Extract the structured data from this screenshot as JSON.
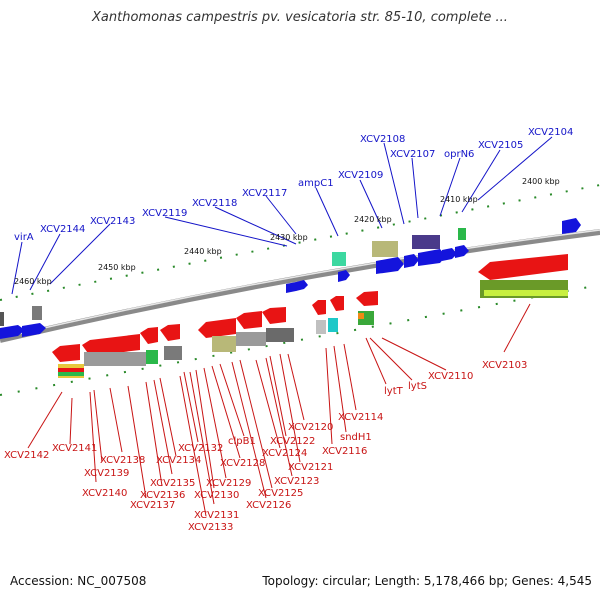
{
  "title": "Xanthomonas campestris pv. vesicatoria str. 85-10, complete ...",
  "accession": "Accession: NC_007508",
  "summary": "Topology: circular; Length: 5,178,466 bp; Genes: 4,545",
  "colors": {
    "forward": "#1414dc",
    "reverse": "#e81414",
    "backbone": "#8a8a8a"
  },
  "kbp_marks": [
    "2400 kbp",
    "2410 kbp",
    "2420 kbp",
    "2430 kbp",
    "2440 kbp",
    "2450 kbp",
    "2460 kbp"
  ],
  "forward_genes": [
    "virA",
    "XCV2144",
    "XCV2143",
    "XCV2119",
    "XCV2118",
    "XCV2117",
    "ampC1",
    "XCV2109",
    "XCV2108",
    "XCV2107",
    "oprN6",
    "XCV2105",
    "XCV2104"
  ],
  "reverse_genes": [
    "XCV2142",
    "XCV2141",
    "XCV2140",
    "XCV2139",
    "XCV2138",
    "XCV2137",
    "XCV2136",
    "XCV2135",
    "XCV2134",
    "XCV2133",
    "XCV2132",
    "XCV2131",
    "XCV2130",
    "XCV2129",
    "XCV2128",
    "clpB1",
    "XCV2126",
    "XCV2125",
    "XCV2124",
    "XCV2123",
    "XCV2122",
    "XCV2121",
    "XCV2120",
    "XCV2116",
    "sndH1",
    "XCV2114",
    "lytT",
    "lytS",
    "XCV2110",
    "XCV2103"
  ]
}
